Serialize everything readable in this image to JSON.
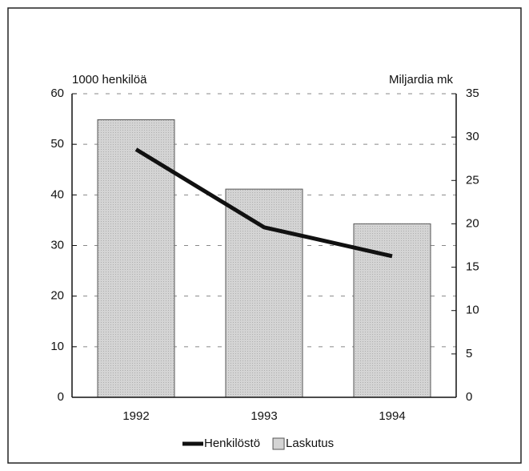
{
  "chart_data": {
    "type": "combo",
    "ylabel": "1000 henkilöä",
    "y2label": "Miljardia mk",
    "categories": [
      "1992",
      "1993",
      "1994"
    ],
    "series": [
      {
        "name": "Henkilöstö",
        "type": "line",
        "color": "#111111",
        "values": [
          49,
          33.6,
          27.9
        ]
      },
      {
        "name": "Laskutus",
        "type": "bar",
        "axis": "y2",
        "color": "#d4d4d4",
        "values": [
          32,
          24,
          20
        ]
      }
    ],
    "ylim": [
      0,
      60
    ],
    "yticks": [
      0,
      10,
      20,
      30,
      40,
      50,
      60
    ],
    "y2lim": [
      0,
      35
    ],
    "y2ticks": [
      0,
      5,
      10,
      15,
      20,
      25,
      30,
      35
    ],
    "grid": true,
    "legend": "bottom"
  }
}
